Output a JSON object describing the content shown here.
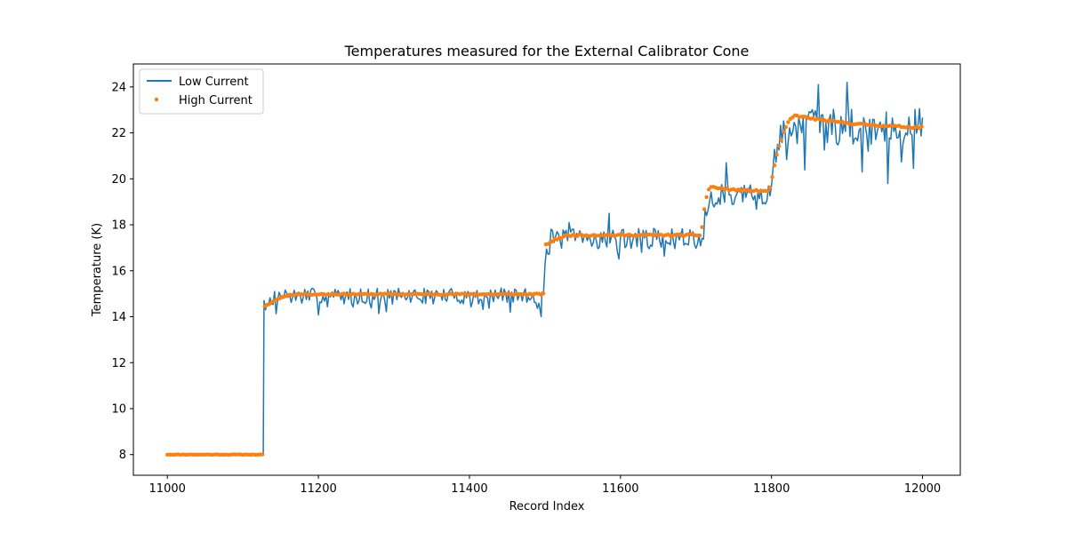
{
  "chart_data": {
    "type": "line",
    "title": "Temperatures measured for the External Calibrator Cone",
    "xlabel": "Record Index",
    "ylabel": "Temperature (K)",
    "xlim": [
      10955,
      12050
    ],
    "ylim": [
      7.1,
      25.0
    ],
    "xticks": [
      11000,
      11200,
      11400,
      11600,
      11800,
      12000
    ],
    "yticks": [
      8,
      10,
      12,
      14,
      16,
      18,
      20,
      22,
      24
    ],
    "legend_position": "top-left",
    "series": [
      {
        "name": "Low Current",
        "style": "line",
        "color": "#1f77b4",
        "x_start": 11000,
        "x_step": 2,
        "noise_seed": 7,
        "segments": [
          {
            "x0": 11000,
            "x1": 11127,
            "level": 8.0,
            "noise": 0.02
          },
          {
            "x0": 11128,
            "x1": 11499,
            "level": 14.9,
            "noise": 0.35,
            "rise_from": 14.3,
            "rise_len": 25
          },
          {
            "x0": 11500,
            "x1": 11709,
            "level": 17.4,
            "noise": 0.45,
            "rise_from": 16.5,
            "rise_len": 10
          },
          {
            "x0": 11710,
            "x1": 11799,
            "level": 19.3,
            "noise": 0.45,
            "rise_from": 17.8,
            "rise_len": 10
          },
          {
            "x0": 11800,
            "x1": 12000,
            "level": 22.3,
            "noise": 0.8,
            "rise_from": 19.9,
            "rise_len": 25
          }
        ],
        "spikes": [
          {
            "x": 11127,
            "y": 8.0
          },
          {
            "x": 11128,
            "y": 14.7
          },
          {
            "x": 11862,
            "y": 24.1
          },
          {
            "x": 11900,
            "y": 24.2
          },
          {
            "x": 11954,
            "y": 19.8
          },
          {
            "x": 11920,
            "y": 20.3
          },
          {
            "x": 11532,
            "y": 18.1
          },
          {
            "x": 11585,
            "y": 18.5
          },
          {
            "x": 11740,
            "y": 20.7
          },
          {
            "x": 11495,
            "y": 14.0
          }
        ]
      },
      {
        "name": "High Current",
        "style": "scatter",
        "color": "#ff7f0e",
        "x_start": 11000,
        "x_step": 3,
        "noise_seed": 11,
        "segments": [
          {
            "x0": 11000,
            "x1": 11127,
            "level": 8.0,
            "noise": 0.01
          },
          {
            "x0": 11128,
            "x1": 11499,
            "level": 14.98,
            "noise": 0.03,
            "rise_from": 14.4,
            "rise_len": 45
          },
          {
            "x0": 11500,
            "x1": 11707,
            "level": 17.55,
            "noise": 0.04,
            "rise_from": 17.1,
            "rise_len": 40
          },
          {
            "x0": 11708,
            "x1": 11797,
            "level": 19.45,
            "noise": 0.04,
            "rise_from": 17.9,
            "rise_len": 12,
            "overshoot": 0.2
          },
          {
            "x0": 11798,
            "x1": 12000,
            "level": 22.15,
            "noise": 0.04,
            "rise_from": 19.6,
            "rise_len": 35,
            "overshoot": 0.6
          }
        ]
      }
    ]
  }
}
